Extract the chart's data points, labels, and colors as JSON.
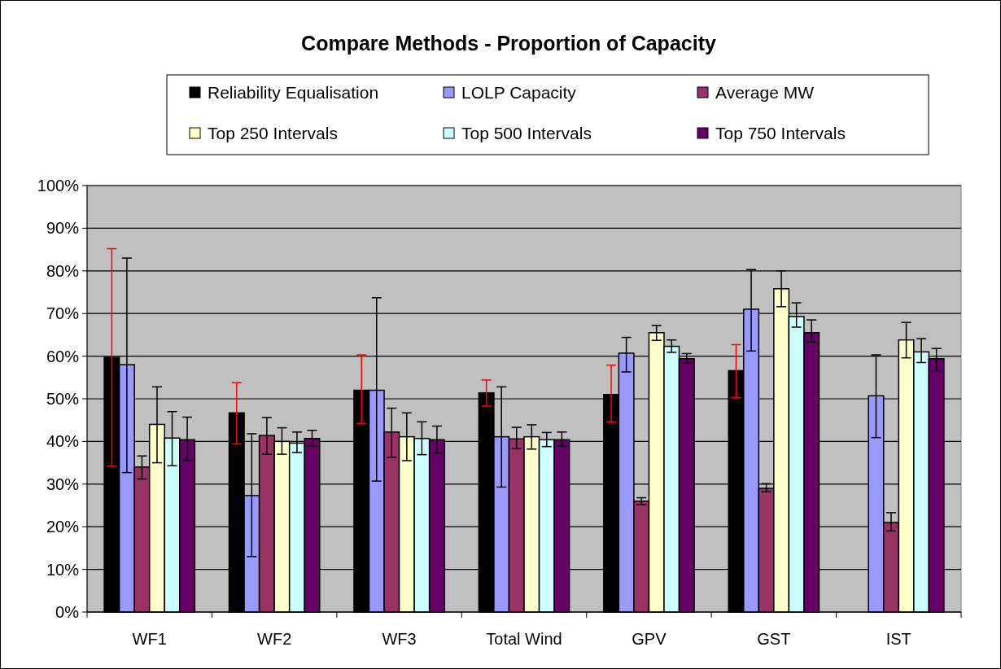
{
  "chart_data": {
    "type": "bar",
    "title": "Compare Methods - Proportion of Capacity",
    "categories": [
      "WF1",
      "WF2",
      "WF3",
      "Total Wind",
      "GPV",
      "GST",
      "IST"
    ],
    "ylim": [
      0,
      100
    ],
    "yticks": [
      {
        "value": 0,
        "label": "0%"
      },
      {
        "value": 10,
        "label": "10%"
      },
      {
        "value": 20,
        "label": "20%"
      },
      {
        "value": 30,
        "label": "30%"
      },
      {
        "value": 40,
        "label": "40%"
      },
      {
        "value": 50,
        "label": "50%"
      },
      {
        "value": 60,
        "label": "60%"
      },
      {
        "value": 70,
        "label": "70%"
      },
      {
        "value": 80,
        "label": "80%"
      },
      {
        "value": 90,
        "label": "90%"
      },
      {
        "value": 100,
        "label": "100%"
      }
    ],
    "grid": "y",
    "legend": "top",
    "series": [
      {
        "name": "Reliability Equalisation",
        "color": "#000000",
        "values": [
          59.7,
          46.7,
          52,
          51.4,
          51,
          56.6,
          null
        ],
        "errors": [
          [
            34.2,
            85.2
          ],
          [
            39.4,
            53.8
          ],
          [
            44.2,
            60.3
          ],
          [
            48.3,
            54.4
          ],
          [
            44.6,
            57.9
          ],
          [
            50.3,
            62.7
          ],
          null
        ]
      },
      {
        "name": "LOLP Capacity",
        "color": "#9999ff",
        "values": [
          58,
          27.3,
          52,
          41.1,
          60.7,
          71,
          50.7
        ],
        "errors": [
          [
            32.7,
            83
          ],
          [
            13,
            41.8
          ],
          [
            30.7,
            73.7
          ],
          [
            29.3,
            52.8
          ],
          [
            56.3,
            64.4
          ],
          [
            61.2,
            80.3
          ],
          [
            40.9,
            60.3
          ]
        ]
      },
      {
        "name": "Average MW",
        "color": "#993366",
        "values": [
          34,
          41.4,
          42.2,
          40.6,
          26,
          29,
          21
        ],
        "errors": [
          [
            31.2,
            36.6
          ],
          [
            37,
            45.6
          ],
          [
            36.3,
            47.8
          ],
          [
            38.3,
            43.3
          ],
          [
            25.2,
            26.8
          ],
          [
            28.2,
            30.1
          ],
          [
            19,
            23.3
          ]
        ]
      },
      {
        "name": "Top 250 Intervals",
        "color": "#ffffcc",
        "values": [
          44,
          40,
          41.1,
          41.1,
          65.5,
          75.8,
          63.8
        ],
        "errors": [
          [
            35,
            52.8
          ],
          [
            37,
            43.2
          ],
          [
            35.5,
            46.7
          ],
          [
            38.2,
            43.9
          ],
          [
            63.7,
            67.2
          ],
          [
            71.6,
            80
          ],
          [
            59.6,
            67.9
          ]
        ]
      },
      {
        "name": "Top 500 Intervals",
        "color": "#ccffff",
        "values": [
          40.8,
          39.6,
          40.7,
          40.4,
          62.3,
          69.3,
          61
        ],
        "errors": [
          [
            34.3,
            47
          ],
          [
            37.4,
            42.2
          ],
          [
            36.9,
            44.6
          ],
          [
            38.8,
            42.1
          ],
          [
            60.9,
            63.8
          ],
          [
            66.8,
            72.5
          ],
          [
            58.5,
            64.1
          ]
        ]
      },
      {
        "name": "Top 750 Intervals",
        "color": "#660066",
        "values": [
          40.4,
          40.7,
          40.4,
          40.4,
          59.4,
          65.5,
          59.4
        ],
        "errors": [
          [
            35.5,
            45.7
          ],
          [
            38.9,
            42.6
          ],
          [
            37.3,
            43.6
          ],
          [
            38.9,
            42.2
          ],
          [
            58.4,
            60.6
          ],
          [
            63.3,
            68.5
          ],
          [
            56.6,
            61.8
          ]
        ]
      }
    ]
  }
}
